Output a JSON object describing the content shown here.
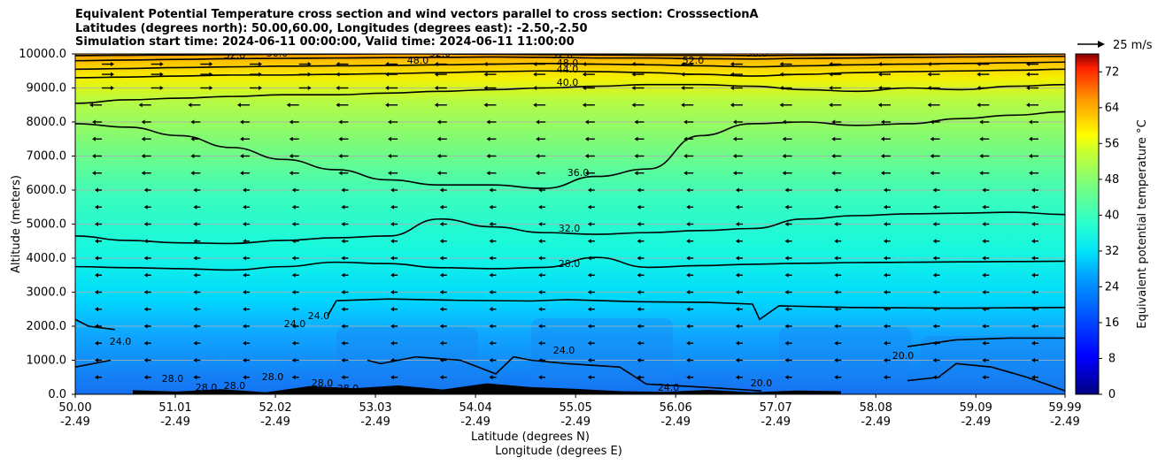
{
  "title": {
    "line1": "Equivalent Potential Temperature cross section and wind vectors parallel to cross section: CrosssectionA",
    "line2": "Latitudes (degrees north): 50.00,60.00, Longitudes (degrees east): -2.50,-2.50",
    "line3": "Simulation start time: 2024-06-11 00:00:00, Valid time: 2024-06-11 11:00:00"
  },
  "chart_data": {
    "type": "contourf",
    "ylabel": "Altitude (meters)",
    "xlabel_line1": "Latitude (degrees N)",
    "xlabel_line2": "Longitude (degrees E)",
    "ylim": [
      0,
      10000
    ],
    "xlim": [
      50.0,
      59.99
    ],
    "yticks": [
      "0.0",
      "1000.0",
      "2000.0",
      "3000.0",
      "4000.0",
      "5000.0",
      "6000.0",
      "7000.0",
      "8000.0",
      "9000.0",
      "10000.0"
    ],
    "xticks": [
      {
        "lat": "50.00",
        "lon": "-2.49"
      },
      {
        "lat": "51.01",
        "lon": "-2.49"
      },
      {
        "lat": "52.02",
        "lon": "-2.49"
      },
      {
        "lat": "53.03",
        "lon": "-2.49"
      },
      {
        "lat": "54.04",
        "lon": "-2.49"
      },
      {
        "lat": "55.05",
        "lon": "-2.49"
      },
      {
        "lat": "56.06",
        "lon": "-2.49"
      },
      {
        "lat": "57.07",
        "lon": "-2.49"
      },
      {
        "lat": "58.08",
        "lon": "-2.49"
      },
      {
        "lat": "59.09",
        "lon": "-2.49"
      },
      {
        "lat": "59.99",
        "lon": "-2.49"
      }
    ],
    "colorbar": {
      "label": "Equivalent potential temperature °C",
      "min": 0,
      "max": 76,
      "ticks": [
        "0",
        "8",
        "16",
        "24",
        "32",
        "40",
        "48",
        "56",
        "64",
        "72"
      ]
    },
    "quiver_key": "25 m/s",
    "contour_labels": [
      "52.0",
      "56.0",
      "48.0",
      "44.0",
      "40.0",
      "36.0",
      "32.0",
      "28.0",
      "24.0",
      "20.0"
    ],
    "contours": [
      {
        "level": 28,
        "label": "28.0",
        "y": [
          3750,
          3720,
          3690,
          3650,
          3750,
          3880,
          3840,
          3720,
          3690,
          3730,
          4020,
          3730,
          3780,
          3820,
          3850,
          3870,
          3880,
          3890,
          3900,
          3910
        ]
      },
      {
        "level": 32,
        "label": "32.0",
        "y": [
          4650,
          4520,
          4450,
          4430,
          4520,
          4600,
          4650,
          5150,
          4920,
          4750,
          4700,
          4750,
          4810,
          4870,
          5150,
          5250,
          5300,
          5320,
          5350,
          5280
        ]
      },
      {
        "level": 36,
        "label": "36.0",
        "y": [
          7950,
          7850,
          7600,
          7250,
          6900,
          6600,
          6300,
          6150,
          6150,
          6050,
          6400,
          6620,
          7600,
          7950,
          8000,
          7900,
          7950,
          8100,
          8200,
          8300
        ]
      },
      {
        "level": 40,
        "label": "40.0",
        "y": [
          8550,
          8650,
          8700,
          8750,
          8800,
          8800,
          8850,
          8900,
          8950,
          9000,
          9050,
          9100,
          9100,
          9050,
          8950,
          8900,
          9000,
          8950,
          9050,
          9100
        ]
      },
      {
        "level": 44,
        "label": "44.0",
        "y": [
          9300,
          9320,
          9350,
          9380,
          9380,
          9400,
          9420,
          9450,
          9480,
          9500,
          9480,
          9450,
          9400,
          9350,
          9400,
          9450,
          9480,
          9500,
          9520,
          9550
        ]
      },
      {
        "level": 48,
        "label": "48.0",
        "y": [
          9550,
          9570,
          9600,
          9620,
          9640,
          9650,
          9660,
          9680,
          9700,
          9720,
          9700,
          9680,
          9650,
          9620,
          9650,
          9680,
          9700,
          9720,
          9740,
          9760
        ]
      },
      {
        "level": 52,
        "label": "52.0",
        "y": [
          9800,
          9820,
          9840,
          9860,
          9870,
          9880,
          9890,
          9900,
          9910,
          9900,
          9880,
          9880,
          9860,
          9850,
          9870,
          9880,
          9900,
          9910,
          9920,
          9930
        ]
      },
      {
        "level": 56,
        "label": "56.0",
        "y": [
          9950,
          9960,
          9970,
          9980,
          9990,
          9995,
          10000,
          10000,
          9990,
          9980,
          9970,
          9960,
          9960,
          9950,
          9960,
          9970,
          9980,
          9990,
          9995,
          10000
        ]
      }
    ],
    "terrain_peaks_m": [
      120,
      80,
      150,
      60,
      240,
      180,
      260,
      140,
      320,
      210,
      160,
      90,
      70,
      130,
      60,
      110,
      90
    ]
  }
}
